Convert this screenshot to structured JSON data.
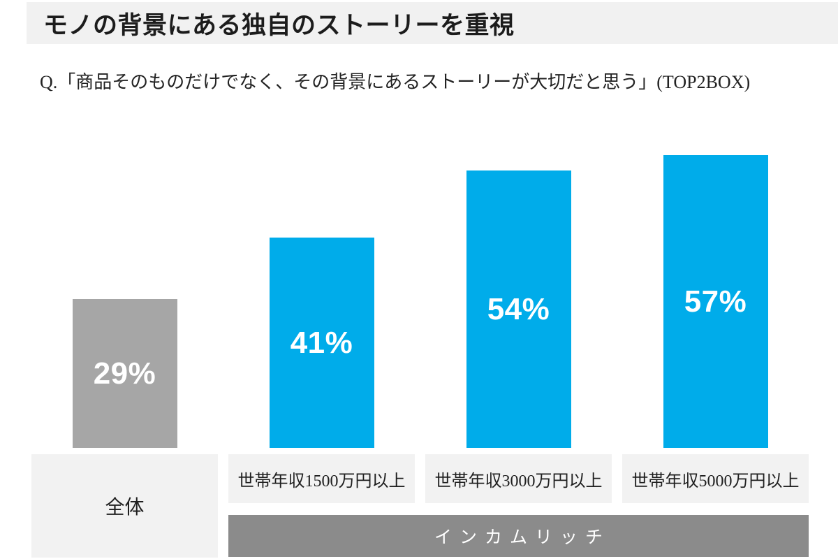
{
  "header": {
    "title": "モノの背景にある独自のストーリーを重視"
  },
  "question": "Q.「商品そのものだけでなく、その背景にあるストーリーが大切だと思う」(TOP2BOX)",
  "chart_data": {
    "type": "bar",
    "title": "モノの背景にある独自のストーリーを重視",
    "subtitle": "Q.「商品そのものだけでなく、その背景にあるストーリーが大切だと思う」(TOP2BOX)",
    "categories": [
      "全体",
      "世帯年収1500万円以上",
      "世帯年収3000万円以上",
      "世帯年収5000万円以上"
    ],
    "values": [
      29,
      41,
      54,
      57
    ],
    "value_labels": [
      "29%",
      "41%",
      "54%",
      "57%"
    ],
    "unit": "%",
    "ylim": [
      0,
      60
    ],
    "grid": false,
    "legend_position": "none",
    "bar_colors": [
      "#a6a6a6",
      "#00acea",
      "#00acea",
      "#00acea"
    ],
    "group_annotation": {
      "label": "インカムリッチ",
      "covers": [
        "世帯年収1500万円以上",
        "世帯年収3000万円以上",
        "世帯年収5000万円以上"
      ]
    },
    "colors": {
      "accent_blue": "#00acea",
      "neutral_gray_bar": "#a6a6a6",
      "group_band_gray": "#8b8b8b",
      "panel_bg": "#f2f2f2",
      "header_bg": "#f1f1f1",
      "value_text": "#ffffff",
      "text_dark": "#1c1c1c"
    }
  }
}
